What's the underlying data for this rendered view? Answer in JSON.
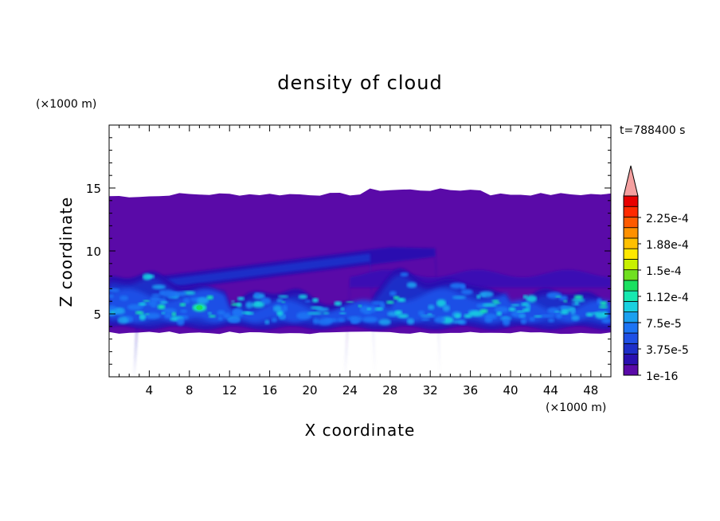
{
  "chart_data": {
    "type": "heatmap",
    "title": "density of cloud",
    "xlabel": "X coordinate",
    "ylabel": "Z coordinate",
    "x_unit": "(×1000 m)",
    "y_unit": "(×1000 m)",
    "time_label": "t=788400 s",
    "xlim": [
      0,
      50
    ],
    "ylim": [
      0,
      20
    ],
    "x_ticks": [
      4,
      8,
      12,
      16,
      20,
      24,
      28,
      32,
      36,
      40,
      44,
      48
    ],
    "y_ticks": [
      5,
      10,
      15
    ],
    "colorbar": {
      "labels": [
        "1e-16",
        "3.75e-5",
        "7.5e-5",
        "1.12e-4",
        "1.5e-4",
        "1.88e-4",
        "2.25e-4"
      ],
      "colors": [
        "#5a0aa8",
        "#2a10b0",
        "#1d2ec8",
        "#1f50e6",
        "#1d74f4",
        "#1aa0f0",
        "#19d0e0",
        "#16e8b0",
        "#1ae060",
        "#70e020",
        "#c8f000",
        "#ffe800",
        "#ffc000",
        "#ff9000",
        "#ff5a00",
        "#ff2a00",
        "#e80000"
      ],
      "overflow_color": "#f4a0a0"
    },
    "regions": {
      "cloud_base_km": 3.5,
      "cloud_top_km": 14.5,
      "dense_layer_km": [
        4,
        8
      ],
      "peak_location": {
        "x_km": 9,
        "z_km": 5.5,
        "value": "≈1.5e-4"
      }
    }
  }
}
